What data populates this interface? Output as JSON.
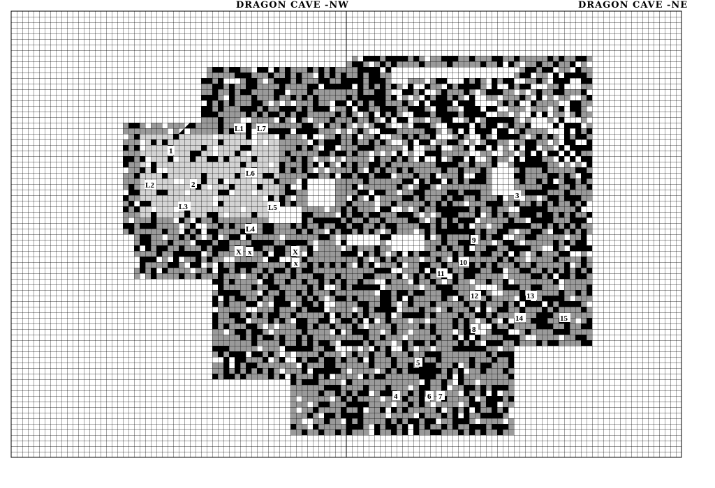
{
  "map": {
    "title_nw": "DRAGON CAVE -NW",
    "title_ne": "DRAGON CAVE -NE",
    "colors": {
      "rock": "#000000",
      "passage": "#ffffff",
      "rubble": "#9a9a9a",
      "light_rubble": "#d4d4d4",
      "grid": "#000000"
    },
    "labels": [
      {
        "name": "label-1",
        "text": "1"
      },
      {
        "name": "label-2",
        "text": "2"
      },
      {
        "name": "label-3",
        "text": "3"
      },
      {
        "name": "label-4",
        "text": "4"
      },
      {
        "name": "label-5",
        "text": "5"
      },
      {
        "name": "label-6",
        "text": "6"
      },
      {
        "name": "label-7",
        "text": "7"
      },
      {
        "name": "label-8",
        "text": "8"
      },
      {
        "name": "label-9",
        "text": "9"
      },
      {
        "name": "label-10",
        "text": "10"
      },
      {
        "name": "label-11",
        "text": "11"
      },
      {
        "name": "label-12",
        "text": "12"
      },
      {
        "name": "label-13",
        "text": "13"
      },
      {
        "name": "label-14",
        "text": "14"
      },
      {
        "name": "label-15",
        "text": "15"
      },
      {
        "name": "label-L1",
        "text": "L1"
      },
      {
        "name": "label-L2",
        "text": "L2"
      },
      {
        "name": "label-L3",
        "text": "L3"
      },
      {
        "name": "label-L4",
        "text": "L4"
      },
      {
        "name": "label-L5",
        "text": "L5"
      },
      {
        "name": "label-L6",
        "text": "L6"
      },
      {
        "name": "label-L7",
        "text": "L7"
      },
      {
        "name": "label-X-west",
        "text": "X"
      },
      {
        "name": "label-x-west",
        "text": "x"
      },
      {
        "name": "label-X-east",
        "text": "X"
      },
      {
        "name": "label-x-east",
        "text": "x"
      }
    ]
  }
}
